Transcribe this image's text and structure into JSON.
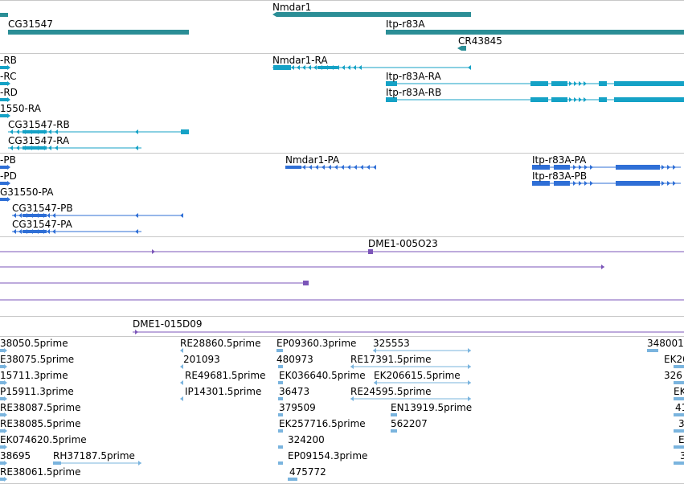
{
  "colors": {
    "gene": "#2b8e96",
    "transcript": "#15a2c6",
    "protein": "#2f6fd6",
    "alignment": "#7b55b8",
    "est": "#7ab4de",
    "separator": "#c8c8c8"
  },
  "tracks": {
    "genes": [
      {
        "label": "Nmdar1"
      },
      {
        "label": "CG31547"
      },
      {
        "label": "Itp-r83A"
      },
      {
        "label": "CR43845"
      }
    ],
    "transcripts": [
      {
        "label": "-RB"
      },
      {
        "label": "-RC"
      },
      {
        "label": "-RD"
      },
      {
        "label": "1550-RA"
      },
      {
        "label": "CG31547-RB"
      },
      {
        "label": "CG31547-RA"
      },
      {
        "label": "Nmdar1-RA"
      },
      {
        "label": "Itp-r83A-RA"
      },
      {
        "label": "Itp-r83A-RB"
      }
    ],
    "proteins": [
      {
        "label": "-PB"
      },
      {
        "label": "-PD"
      },
      {
        "label": "G31550-PA"
      },
      {
        "label": "CG31547-PB"
      },
      {
        "label": "CG31547-PA"
      },
      {
        "label": "Nmdar1-PA"
      },
      {
        "label": "Itp-r83A-PA"
      },
      {
        "label": "Itp-r83A-PB"
      }
    ],
    "alignments": [
      {
        "label": "DME1-005O23"
      },
      {
        "label": "DME1-015D09"
      }
    ],
    "ests": [
      {
        "label": "38050.5prime"
      },
      {
        "label": "E38075.5prime"
      },
      {
        "label": "15711.3prime"
      },
      {
        "label": "P15911.3prime"
      },
      {
        "label": "RE38087.5prime"
      },
      {
        "label": "RE38085.5prime"
      },
      {
        "label": "EK074620.5prime"
      },
      {
        "label": "38695"
      },
      {
        "label": "RH37187.5prime"
      },
      {
        "label": "RE38061.5prime"
      },
      {
        "label": "RE28860.5prime"
      },
      {
        "label": "201093"
      },
      {
        "label": "RE49681.5prime"
      },
      {
        "label": "IP14301.5prime"
      },
      {
        "label": "EP09360.3prime"
      },
      {
        "label": "480973"
      },
      {
        "label": "EK036640.5prime"
      },
      {
        "label": "36473"
      },
      {
        "label": "379509"
      },
      {
        "label": "EK257716.5prime"
      },
      {
        "label": "324200"
      },
      {
        "label": "EP09154.3prime"
      },
      {
        "label": "475772"
      },
      {
        "label": "325553"
      },
      {
        "label": "RE17391.5prime"
      },
      {
        "label": "EK206615.5prime"
      },
      {
        "label": "RE24595.5prime"
      },
      {
        "label": "EN13919.5prime"
      },
      {
        "label": "562207"
      },
      {
        "label": "348001"
      },
      {
        "label": "EK20"
      },
      {
        "label": "326"
      },
      {
        "label": "EK"
      },
      {
        "label": "41"
      },
      {
        "label": "3"
      },
      {
        "label": "E"
      },
      {
        "label": "3"
      }
    ]
  }
}
